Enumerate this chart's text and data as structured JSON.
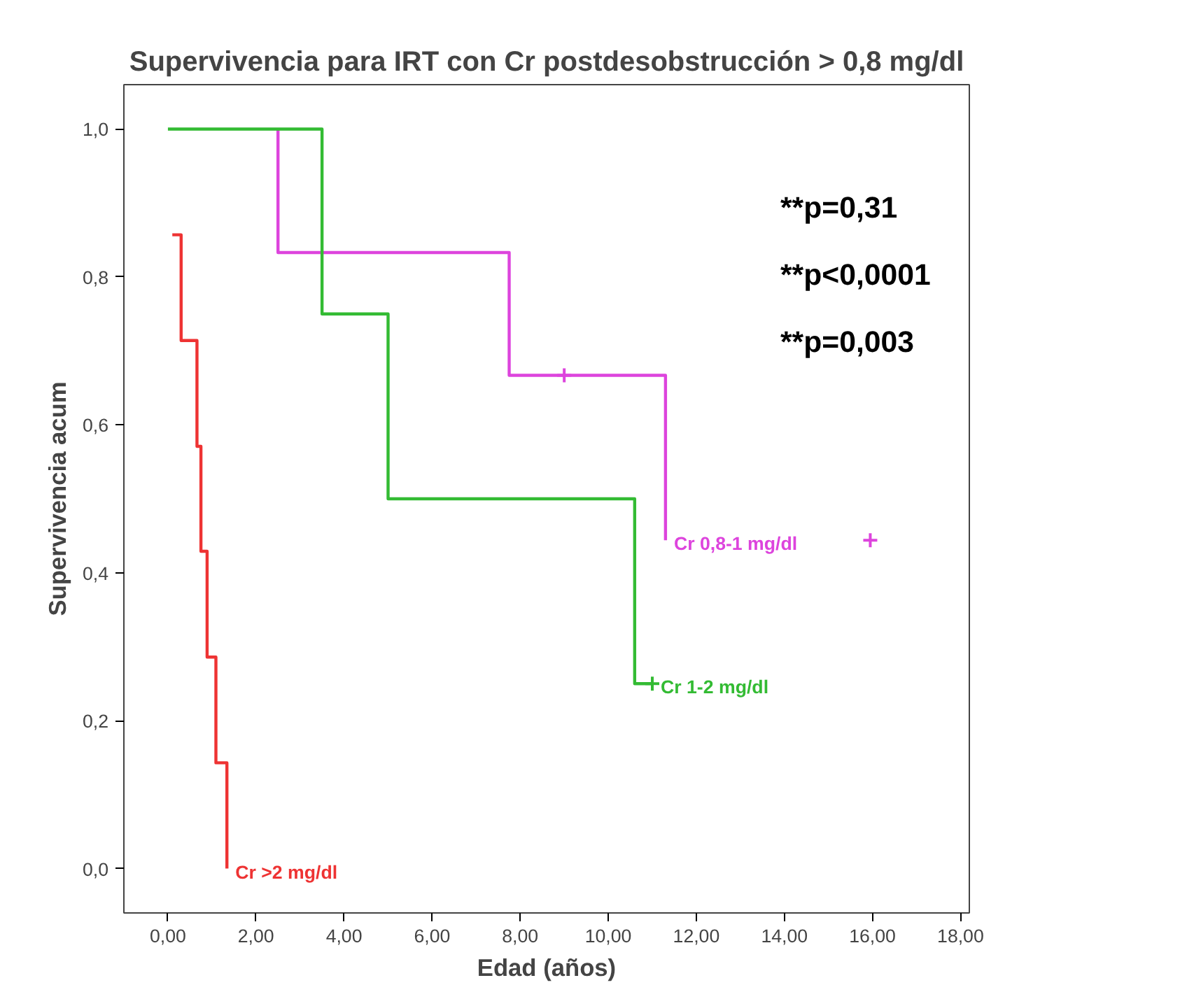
{
  "chart_data": {
    "type": "step",
    "title": "Supervivencia para IRT con Cr postdesobstrucción > 0,8 mg/dl",
    "xlabel": "Edad (años)",
    "ylabel": "Supervivencia acum",
    "xlim": [
      -1.0,
      18.2
    ],
    "ylim": [
      -0.06,
      1.06
    ],
    "xticks": [
      {
        "value": 0,
        "label": "0,00"
      },
      {
        "value": 2,
        "label": "2,00"
      },
      {
        "value": 4,
        "label": "4,00"
      },
      {
        "value": 6,
        "label": "6,00"
      },
      {
        "value": 8,
        "label": "8,00"
      },
      {
        "value": 10,
        "label": "10,00"
      },
      {
        "value": 12,
        "label": "12,00"
      },
      {
        "value": 14,
        "label": "14,00"
      },
      {
        "value": 16,
        "label": "16,00"
      },
      {
        "value": 18,
        "label": "18,00"
      }
    ],
    "yticks": [
      {
        "value": 0,
        "label": "0,0"
      },
      {
        "value": 0.2,
        "label": "0,2"
      },
      {
        "value": 0.4,
        "label": "0,4"
      },
      {
        "value": 0.6,
        "label": "0,6"
      },
      {
        "value": 0.8,
        "label": "0,8"
      },
      {
        "value": 1.0,
        "label": "1,0"
      }
    ],
    "grid": false,
    "series": [
      {
        "name": "Cr 0,8-1 mg/dl",
        "color": "#dd44dd",
        "x": [
          2.5,
          2.5,
          7.75,
          11.3
        ],
        "values": [
          1.0,
          0.833,
          0.667,
          0.444
        ]
      },
      {
        "name": "Cr 1-2 mg/dl",
        "color": "#33bb33",
        "x": [
          0,
          3.5,
          5.0,
          10.6,
          11.0
        ],
        "values": [
          1.0,
          0.75,
          0.5,
          0.25,
          0.25
        ]
      },
      {
        "name": "Cr >2 mg/dl",
        "color": "#ee3333",
        "x": [
          0.1,
          0.3,
          0.66,
          0.75,
          0.89,
          1.09,
          1.34
        ],
        "values": [
          0.857,
          0.714,
          0.571,
          0.429,
          0.286,
          0.143,
          0
        ]
      },
      {
        "type": "scatter",
        "marker": "cross",
        "color": "#dd44dd",
        "x": [
          9.0,
          15.95
        ],
        "values": [
          0.667,
          0.444
        ]
      },
      {
        "type": "scatter",
        "marker": "cross",
        "color": "#33bb33",
        "x": [
          11.0
        ],
        "values": [
          0.25
        ]
      }
    ],
    "annotations": [
      "**p=0,31",
      "**p<0,0001",
      "**p=0,003"
    ]
  }
}
